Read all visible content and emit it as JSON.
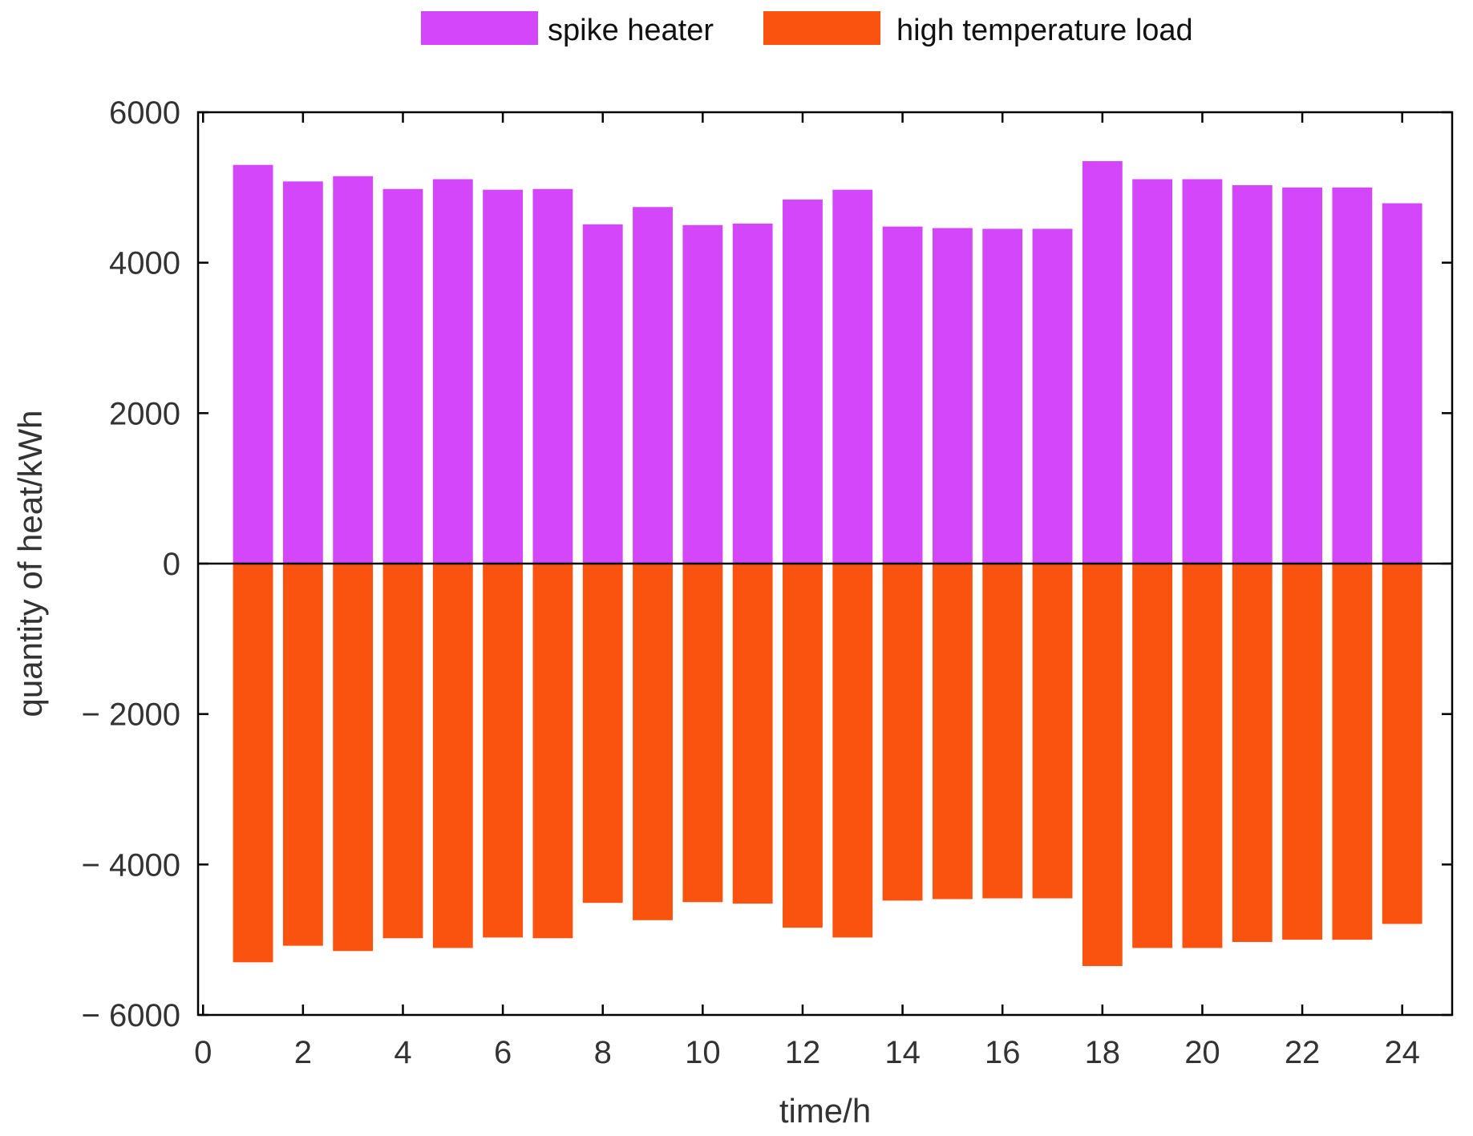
{
  "chart_data": {
    "type": "bar",
    "layout": "diverging-stacked",
    "title": "",
    "xlabel": "time/h",
    "ylabel": "quantity of heat/kWh",
    "x": [
      1,
      2,
      3,
      4,
      5,
      6,
      7,
      8,
      9,
      10,
      11,
      12,
      13,
      14,
      15,
      16,
      17,
      18,
      19,
      20,
      21,
      22,
      23,
      24
    ],
    "xlim": [
      -0.1,
      25
    ],
    "ylim": [
      -6000,
      6000
    ],
    "x_ticks": [
      0,
      2,
      4,
      6,
      8,
      10,
      12,
      14,
      16,
      18,
      20,
      22,
      24
    ],
    "x_tick_labels": [
      "0",
      "2",
      "4",
      "6",
      "8",
      "10",
      "12",
      "14",
      "16",
      "18",
      "20",
      "22",
      "24"
    ],
    "y_ticks": [
      6000,
      4000,
      2000,
      0,
      -2000,
      -4000,
      -6000
    ],
    "y_tick_labels": [
      "6000",
      "4000",
      "2000",
      "0",
      "− 2000",
      "− 4000",
      "− 6000"
    ],
    "grid": false,
    "legend_position": "top-center",
    "series": [
      {
        "name": "spike heater",
        "color": "#d446fa",
        "values": [
          5300,
          5080,
          5150,
          4980,
          5110,
          4970,
          4980,
          4510,
          4740,
          4500,
          4520,
          4840,
          4970,
          4480,
          4460,
          4450,
          4450,
          5350,
          5110,
          5110,
          5030,
          5000,
          5000,
          4790
        ]
      },
      {
        "name": "high temperature load",
        "color": "#fa520f",
        "values": [
          -5300,
          -5080,
          -5150,
          -4980,
          -5110,
          -4970,
          -4980,
          -4510,
          -4740,
          -4500,
          -4520,
          -4840,
          -4970,
          -4480,
          -4460,
          -4450,
          -4450,
          -5350,
          -5110,
          -5110,
          -5030,
          -5000,
          -5000,
          -4790
        ]
      }
    ]
  }
}
